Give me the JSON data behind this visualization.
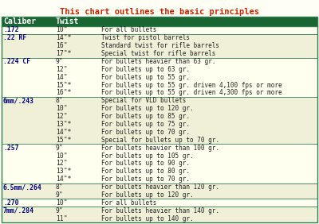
{
  "title": "This chart outlines the basic principles",
  "title_color": "#cc2200",
  "header_bg": "#1a6632",
  "header_text_color": "#ffffff",
  "row_bg_light": "#fffff0",
  "row_bg_beige": "#f5f5d8",
  "border_color": "#2e7d4f",
  "text_color": "#222222",
  "caliber_color": "#000080",
  "rows": [
    [
      ".172",
      "10\"",
      "For all bullets"
    ],
    [
      ".22 RF",
      "14\"*",
      "Twist for pistol barrels"
    ],
    [
      "",
      "16\"",
      "Standard twist for rifle barrels"
    ],
    [
      "",
      "17\"*",
      "Special twist for rifle barrels"
    ],
    [
      ".224 CF",
      "9\"",
      "For bullets heavier than 63 gr."
    ],
    [
      "",
      "12\"",
      "For bullets up to 63 gr."
    ],
    [
      "",
      "14\"",
      "For bullets up to 55 gr."
    ],
    [
      "",
      "15\"*",
      "For bullets up to 55 gr. driven 4,100 fps or more"
    ],
    [
      "",
      "16\"*",
      "For bullets up to 55 gr. driven 4,300 fps or more"
    ],
    [
      "6mm/.243",
      "8\"",
      "Special for VLD bullets"
    ],
    [
      "",
      "10\"",
      "For bullets up to 120 gr."
    ],
    [
      "",
      "12\"",
      "For bullets up to 85 gr."
    ],
    [
      "",
      "13\"*",
      "For bullets up to 75 gr."
    ],
    [
      "",
      "14\"*",
      "For bullets up to 70 gr."
    ],
    [
      "",
      "15\"*",
      "Special for bullets up to 70 gr."
    ],
    [
      ".257",
      "9\"",
      "For bullets heavier than 100 gr."
    ],
    [
      "",
      "10\"",
      "For bullets up to 105 gr."
    ],
    [
      "",
      "12\"",
      "For bullets up to 90 gr."
    ],
    [
      "",
      "13\"*",
      "For bullets up to 80 gr."
    ],
    [
      "",
      "14\"*",
      "For bullets up to 70 gr."
    ],
    [
      "6.5mm/.264",
      "8\"",
      "For bullets heavier than 120 gr."
    ],
    [
      "",
      "9\"",
      "For bullets up to 120 gr."
    ],
    [
      ".270",
      "10\"",
      "For all bullets"
    ],
    [
      "7mm/.284",
      "9\"",
      "For bullets heavier than 140 gr."
    ],
    [
      "",
      "11\"",
      "For bullets up to 140 gr."
    ]
  ],
  "group_first_rows": [
    0,
    1,
    4,
    9,
    15,
    20,
    22,
    23
  ],
  "group_colors": [
    "#fffff0",
    "#f0f0d8",
    "#fffff0",
    "#f0f0d8",
    "#fffff0",
    "#f0f0d8",
    "#fffff0",
    "#f0f0d8"
  ]
}
